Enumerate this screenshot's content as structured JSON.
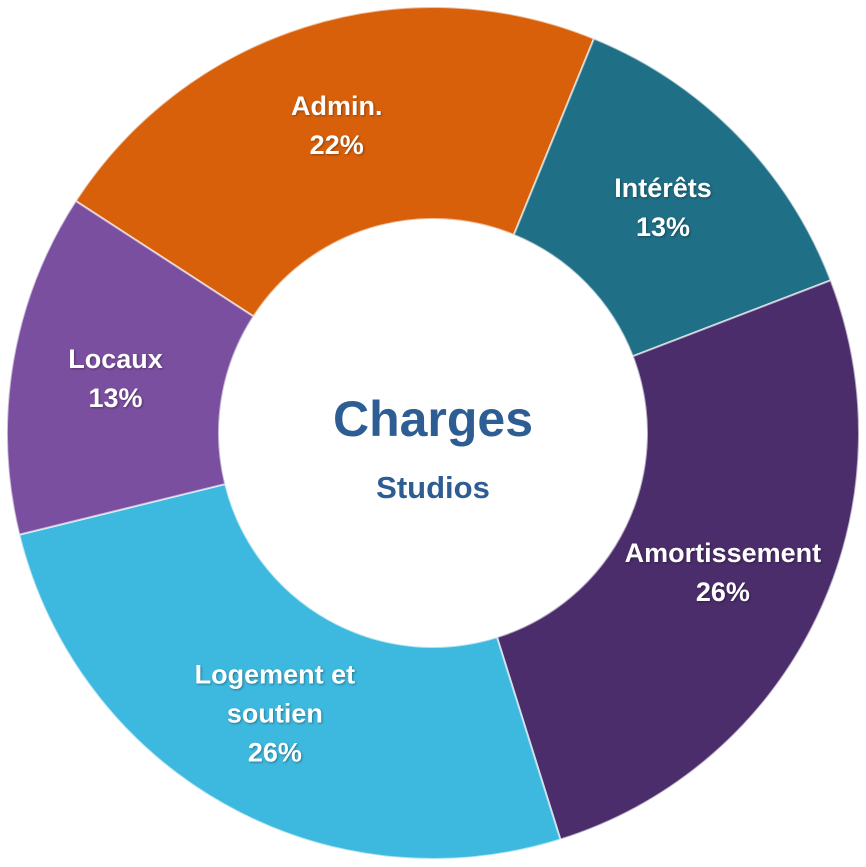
{
  "chart_data": {
    "type": "donut",
    "title": "Charges",
    "subtitle": "Studios",
    "categories": [
      "Admin.",
      "Intérêts",
      "Amortissement",
      "Logement et soutien",
      "Locaux"
    ],
    "values": [
      22,
      13,
      26,
      26,
      13
    ],
    "value_labels": [
      "22%",
      "13%",
      "26%",
      "26%",
      "13%"
    ],
    "colors": [
      "#d9600b",
      "#1f6f86",
      "#4b2d6b",
      "#3db8de",
      "#7b4fa0"
    ]
  }
}
